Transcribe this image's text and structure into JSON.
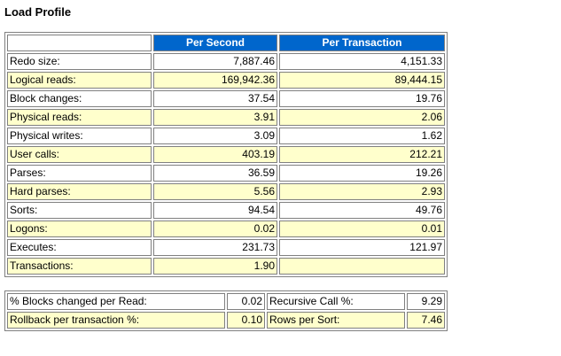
{
  "page": {
    "title": "Load Profile"
  },
  "load_profile": {
    "headers": [
      "",
      "Per Second",
      "Per Transaction"
    ],
    "rows": [
      {
        "label": "Redo size:",
        "per_second": "7,887.46",
        "per_transaction": "4,151.33"
      },
      {
        "label": "Logical reads:",
        "per_second": "169,942.36",
        "per_transaction": "89,444.15"
      },
      {
        "label": "Block changes:",
        "per_second": "37.54",
        "per_transaction": "19.76"
      },
      {
        "label": "Physical reads:",
        "per_second": "3.91",
        "per_transaction": "2.06"
      },
      {
        "label": "Physical writes:",
        "per_second": "3.09",
        "per_transaction": "1.62"
      },
      {
        "label": "User calls:",
        "per_second": "403.19",
        "per_transaction": "212.21"
      },
      {
        "label": "Parses:",
        "per_second": "36.59",
        "per_transaction": "19.26"
      },
      {
        "label": "Hard parses:",
        "per_second": "5.56",
        "per_transaction": "2.93"
      },
      {
        "label": "Sorts:",
        "per_second": "94.54",
        "per_transaction": "49.76"
      },
      {
        "label": "Logons:",
        "per_second": "0.02",
        "per_transaction": "0.01"
      },
      {
        "label": "Executes:",
        "per_second": "231.73",
        "per_transaction": "121.97"
      },
      {
        "label": "Transactions:",
        "per_second": "1.90",
        "per_transaction": ""
      }
    ]
  },
  "ratios": {
    "rows": [
      {
        "label_a": "% Blocks changed per Read:",
        "value_a": "0.02",
        "label_b": "Recursive Call %:",
        "value_b": "9.29"
      },
      {
        "label_a": "Rollback per transaction %:",
        "value_a": "0.10",
        "label_b": "Rows per Sort:",
        "value_b": "7.46"
      }
    ]
  },
  "colors": {
    "header_bg": "#0066cc",
    "header_text": "#ffffff",
    "alt_row_bg": "#ffffcc",
    "border": "#808080"
  }
}
